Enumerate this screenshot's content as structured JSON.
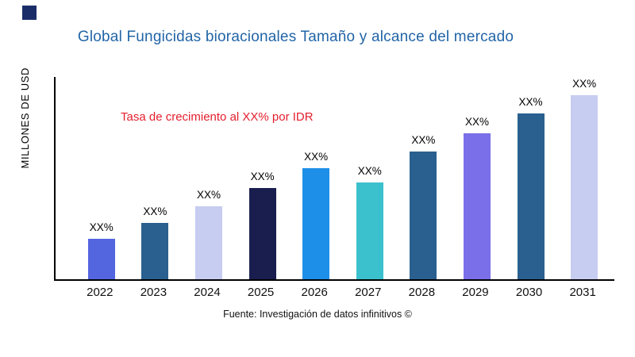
{
  "logo": {
    "color": "#1b2d69"
  },
  "header": {
    "title": "Global Fungicidas bioracionales Tamaño y alcance del mercado",
    "title_color": "#2265a7"
  },
  "chart_data": {
    "type": "bar",
    "title": "Global Fungicidas bioracionales Tamaño y alcance del mercado",
    "ylabel": "MILLONES DE USD",
    "xlabel": "",
    "annotation": "Tasa de crecimiento al XX% por IDR",
    "annotation_color": "#e41e2d",
    "categories": [
      "2022",
      "2023",
      "2024",
      "2025",
      "2026",
      "2027",
      "2028",
      "2029",
      "2030",
      "2031"
    ],
    "bar_label": "XX%",
    "values_pct_of_plot_height": [
      20,
      28,
      36,
      45,
      55,
      48,
      63,
      72,
      82,
      91
    ],
    "bar_colors": [
      "#5465e0",
      "#29608f",
      "#c7ccf1",
      "#191e4f",
      "#1d8fe8",
      "#3bc0cd",
      "#29608f",
      "#7a6fe8",
      "#29608f",
      "#c7ccf1"
    ],
    "axis_color": "#000000",
    "grid": "off",
    "legend": "none",
    "ylim_note": "numeric values not shown; all bars labeled XX% (placeholder)"
  },
  "footer": {
    "source": "Fuente: Investigación de datos infinitivos ©"
  }
}
